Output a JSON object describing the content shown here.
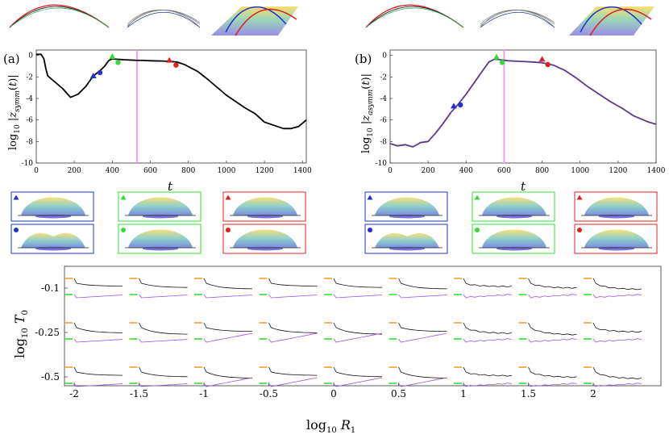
{
  "colors": {
    "black": "#000000",
    "purple": "#5b3a8c",
    "magenta": "#f0a0f0",
    "green": "#33dd33",
    "red": "#e02020",
    "blue": "#2233cc",
    "orange": "#f0a030",
    "violet": "#9955ee"
  },
  "panel_a": {
    "label": "(a)",
    "ylabel": "log10 |z_symm(t)|",
    "xlabel": "t"
  },
  "panel_b": {
    "label": "(b)",
    "ylabel": "log10 |z_asymm(t)|",
    "xlabel": "t"
  },
  "bottom": {
    "ylabel": "log10 T0",
    "xlabel": "log10 R1"
  },
  "chart_data": [
    {
      "id": "panel-a",
      "type": "line",
      "title": "",
      "xlabel": "t",
      "ylabel": "log10 |z_symm(t)|",
      "xlim": [
        0,
        1420
      ],
      "ylim": [
        -10,
        0.5
      ],
      "xticks": [
        0,
        200,
        400,
        600,
        800,
        1000,
        1200,
        1400
      ],
      "yticks": [
        0,
        -2,
        -4,
        -6,
        -8,
        -10
      ],
      "series": [
        {
          "name": "z_symm",
          "color": "#000000",
          "x": [
            0,
            25,
            40,
            50,
            60,
            80,
            100,
            140,
            180,
            220,
            260,
            300,
            330,
            360,
            380,
            400,
            420,
            460,
            520,
            560,
            600,
            660,
            700,
            740,
            780,
            850,
            900,
            960,
            1000,
            1050,
            1100,
            1150,
            1200,
            1250,
            1300,
            1340,
            1380,
            1420
          ],
          "y": [
            0.1,
            0.1,
            -0.3,
            -1.2,
            -1.9,
            -2.2,
            -2.5,
            -3.1,
            -3.9,
            -3.6,
            -2.9,
            -1.9,
            -1.5,
            -1.0,
            -0.5,
            -0.3,
            -0.35,
            -0.4,
            -0.45,
            -0.47,
            -0.5,
            -0.52,
            -0.55,
            -0.62,
            -0.85,
            -1.5,
            -2.2,
            -3.1,
            -3.7,
            -4.3,
            -4.9,
            -5.4,
            -6.2,
            -6.5,
            -6.8,
            -6.8,
            -6.6,
            -6.0
          ]
        }
      ],
      "vline": {
        "x": 530,
        "color": "#f0a0f0"
      },
      "markers": [
        {
          "x": 300,
          "y": -1.9,
          "shape": "triangle",
          "color": "#2233cc"
        },
        {
          "x": 335,
          "y": -1.6,
          "shape": "circle",
          "color": "#2233cc"
        },
        {
          "x": 400,
          "y": -0.1,
          "shape": "triangle",
          "color": "#33dd33"
        },
        {
          "x": 430,
          "y": -0.65,
          "shape": "circle",
          "color": "#33dd33"
        },
        {
          "x": 700,
          "y": -0.45,
          "shape": "triangle",
          "color": "#e02020"
        },
        {
          "x": 735,
          "y": -0.9,
          "shape": "circle",
          "color": "#e02020"
        }
      ]
    },
    {
      "id": "panel-b",
      "type": "line",
      "title": "",
      "xlabel": "t",
      "ylabel": "log10 |z_asymm(t)|",
      "xlim": [
        0,
        1400
      ],
      "ylim": [
        -10,
        0.5
      ],
      "xticks": [
        0,
        200,
        400,
        600,
        800,
        1000,
        1200,
        1400
      ],
      "yticks": [
        0,
        -2,
        -4,
        -6,
        -8,
        -10
      ],
      "series": [
        {
          "name": "z_asymm",
          "color": "#5b3a8c",
          "x": [
            0,
            40,
            80,
            120,
            160,
            200,
            240,
            280,
            320,
            360,
            400,
            440,
            480,
            520,
            550,
            580,
            620,
            680,
            740,
            800,
            860,
            920,
            980,
            1040,
            1100,
            1160,
            1220,
            1280,
            1320,
            1360,
            1400
          ],
          "y": [
            -8.2,
            -8.4,
            -8.3,
            -8.5,
            -8.1,
            -8.0,
            -7.2,
            -6.3,
            -5.3,
            -4.5,
            -3.6,
            -2.6,
            -1.6,
            -0.6,
            -0.35,
            -0.4,
            -0.5,
            -0.55,
            -0.6,
            -0.68,
            -0.9,
            -1.4,
            -2.1,
            -2.9,
            -3.6,
            -4.3,
            -4.9,
            -5.6,
            -5.9,
            -6.2,
            -6.4
          ]
        }
      ],
      "vline": {
        "x": 600,
        "color": "#f0a0f0"
      },
      "markers": [
        {
          "x": 335,
          "y": -4.7,
          "shape": "triangle",
          "color": "#2233cc"
        },
        {
          "x": 370,
          "y": -4.6,
          "shape": "circle",
          "color": "#2233cc"
        },
        {
          "x": 560,
          "y": -0.15,
          "shape": "triangle",
          "color": "#33dd33"
        },
        {
          "x": 590,
          "y": -0.65,
          "shape": "circle",
          "color": "#33dd33"
        },
        {
          "x": 800,
          "y": -0.35,
          "shape": "triangle",
          "color": "#e02020"
        },
        {
          "x": 830,
          "y": -0.85,
          "shape": "circle",
          "color": "#e02020"
        }
      ]
    },
    {
      "id": "bottom-grid",
      "type": "line",
      "title": "",
      "xlabel": "log10 R1",
      "ylabel": "log10 T0",
      "xticks": [
        "-2",
        "-1.5",
        "-1",
        "-0.5",
        "0",
        "0.5",
        "1",
        "1.5",
        "2"
      ],
      "yticks": [
        "-0.1",
        "-0.25",
        "-0.5"
      ],
      "columns": 9,
      "rows": 3,
      "note": "each cell shows an orange (upper) and green (lower) reference tick with black and purple growth-rate traces"
    }
  ]
}
